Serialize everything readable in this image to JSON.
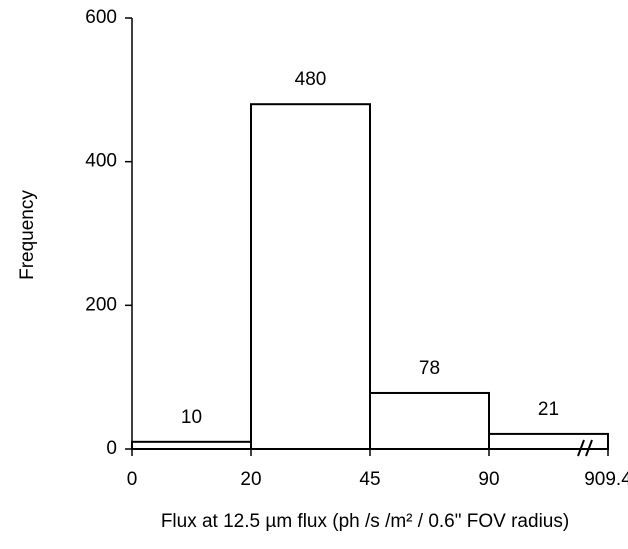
{
  "chart_data": {
    "type": "histogram",
    "xlabel": "Flux at 12.5 µm flux (ph /s /m² / 0.6\" FOV radius)",
    "ylabel": "Frequency",
    "bins": [
      0,
      20,
      45,
      90,
      909.4
    ],
    "counts": [
      10,
      480,
      78,
      21
    ],
    "color": "#ffffff",
    "edgecolor": "#000000",
    "ylim": [
      0,
      600
    ],
    "yticks": [
      0,
      200,
      400,
      600
    ]
  }
}
